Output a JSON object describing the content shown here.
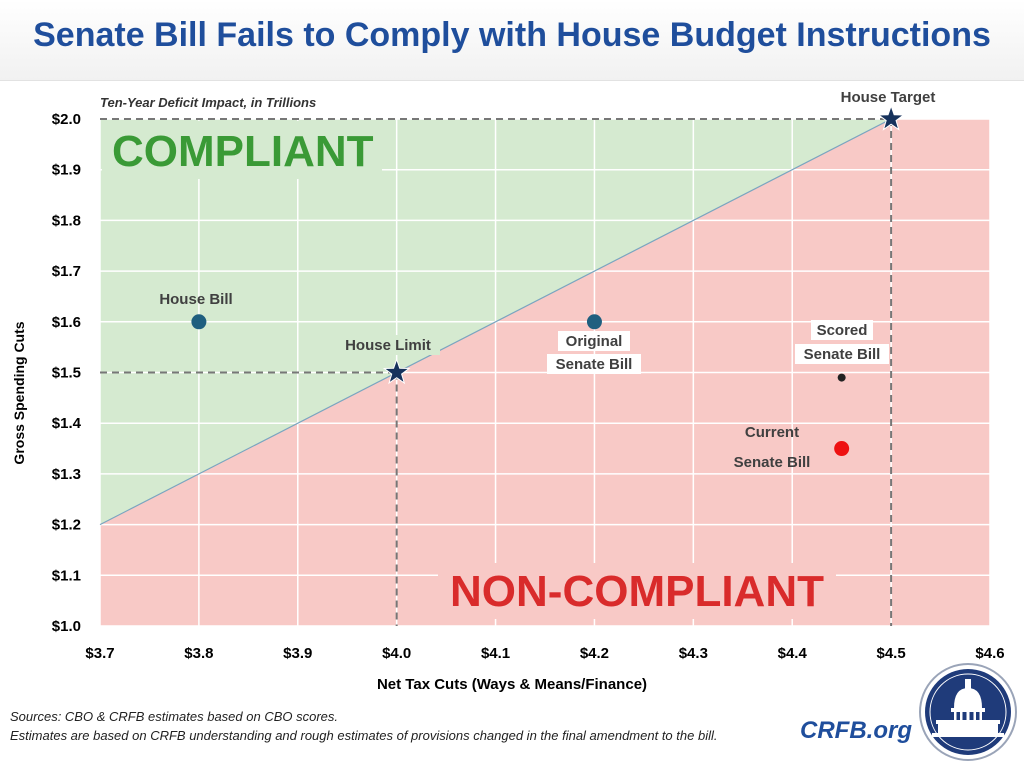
{
  "title": "Senate Bill Fails to Comply with House Budget Instructions",
  "colors": {
    "title": "#1f4e9c",
    "compliant_fill": "#d5ead0",
    "noncompliant_fill": "#f8c9c6",
    "compliant_text": "#3a9a36",
    "noncompliant_text": "#d92b2b",
    "point_blue": "#1f5f7f",
    "star": "#16325c",
    "current_red": "#ee1111"
  },
  "chart_data": {
    "type": "scatter",
    "title": "Senate Bill Fails to Comply with House Budget Instructions",
    "subtitle": "Ten-Year Deficit Impact, in Trillions",
    "xlabel": "Net Tax Cuts (Ways & Means/Finance)",
    "ylabel": "Gross Spending Cuts",
    "xlim": [
      3.7,
      4.6
    ],
    "ylim": [
      1.0,
      2.0
    ],
    "x_ticks": [
      "$3.7",
      "$3.8",
      "$3.9",
      "$4.0",
      "$4.1",
      "$4.2",
      "$4.3",
      "$4.4",
      "$4.5",
      "$4.6"
    ],
    "y_ticks": [
      "$2.0",
      "$1.9",
      "$1.8",
      "$1.7",
      "$1.6",
      "$1.5",
      "$1.4",
      "$1.3",
      "$1.2",
      "$1.1",
      "$1.0"
    ],
    "grid": true,
    "regions": {
      "compliant_label": "COMPLIANT",
      "noncompliant_label": "NON-COMPLIANT",
      "boundary": [
        [
          3.7,
          1.2
        ],
        [
          4.5,
          2.0
        ]
      ]
    },
    "points": [
      {
        "label": "House Target",
        "x": 4.5,
        "y": 2.0,
        "marker": "star"
      },
      {
        "label": "House Limit",
        "x": 4.0,
        "y": 1.5,
        "marker": "star"
      },
      {
        "label": "House Bill",
        "x": 3.8,
        "y": 1.6,
        "marker": "circle"
      },
      {
        "label": "Original Senate Bill",
        "x": 4.2,
        "y": 1.6,
        "marker": "circle"
      },
      {
        "label": "Scored Senate Bill",
        "x": 4.45,
        "y": 1.49,
        "marker": "dot"
      },
      {
        "label": "Current Senate Bill",
        "x": 4.45,
        "y": 1.35,
        "marker": "circle"
      }
    ]
  },
  "annotations": {
    "house_bill": "House Bill",
    "house_limit": "House Limit",
    "house_target": "House Target",
    "original_senate_line1": "Original",
    "original_senate_line2": "Senate Bill",
    "scored_senate_line1": "Scored",
    "scored_senate_line2": "Senate Bill",
    "current_senate_line1": "Current",
    "current_senate_line2": "Senate Bill"
  },
  "footer": {
    "sources_line": "Sources: CBO & CRFB estimates based on CBO scores.",
    "estimates_line": "Estimates are based on CRFB understanding and rough estimates of provisions changed in the final amendment to the bill.",
    "brand": "CRFB.org"
  }
}
